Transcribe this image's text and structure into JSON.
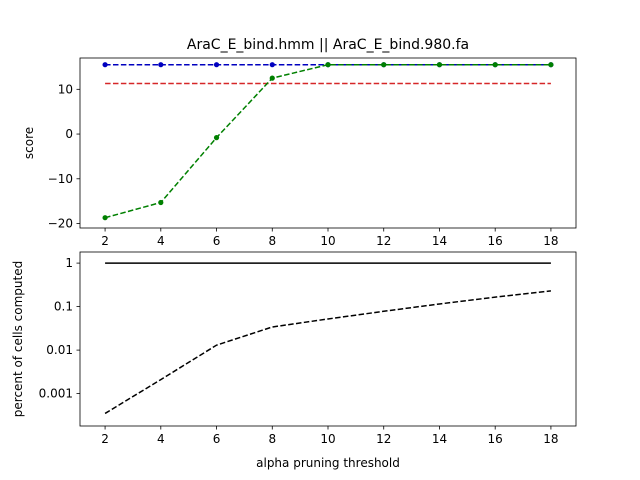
{
  "chart_data": [
    {
      "type": "line",
      "title": "AraC_E_bind.hmm || AraC_E_bind.980.fa",
      "xlabel": "",
      "ylabel": "score",
      "x": [
        2,
        4,
        6,
        8,
        10,
        12,
        14,
        16,
        18
      ],
      "xticks": [
        "2",
        "4",
        "6",
        "8",
        "10",
        "12",
        "14",
        "16",
        "18"
      ],
      "xlim": [
        1.1,
        18.9
      ],
      "ylim": [
        -21,
        17
      ],
      "yticks": [
        {
          "value": 10,
          "label": "10"
        },
        {
          "value": 0,
          "label": "0"
        },
        {
          "value": -10,
          "label": "−10"
        },
        {
          "value": -20,
          "label": "−20"
        }
      ],
      "grid": false,
      "series": [
        {
          "color": "#0000bf",
          "style": "dashed",
          "marker": "dot",
          "values": [
            15.5,
            15.5,
            15.5,
            15.5,
            15.5,
            15.5,
            15.5,
            15.5,
            15.5
          ]
        },
        {
          "color": "#d62728",
          "style": "dashed",
          "marker": "none",
          "values": [
            11.3,
            11.3,
            11.3,
            11.3,
            11.3,
            11.3,
            11.3,
            11.3,
            11.3
          ]
        },
        {
          "color": "#008000",
          "style": "dashed",
          "marker": "dot",
          "values": [
            -18.7,
            -15.3,
            -0.8,
            12.5,
            15.5,
            15.5,
            15.5,
            15.5,
            15.5
          ]
        }
      ]
    },
    {
      "type": "line",
      "title": "",
      "xlabel": "alpha pruning threshold",
      "ylabel": "percent of cells computed",
      "scale_y": "log",
      "x": [
        2,
        4,
        6,
        8,
        10,
        12,
        14,
        16,
        18
      ],
      "xticks": [
        "2",
        "4",
        "6",
        "8",
        "10",
        "12",
        "14",
        "16",
        "18"
      ],
      "xlim": [
        1.1,
        18.9
      ],
      "ylim": [
        0.00018,
        1.8
      ],
      "yticks": [
        {
          "value": 1,
          "label": "1"
        },
        {
          "value": 0.1,
          "label": "0.1"
        },
        {
          "value": 0.01,
          "label": "0.01"
        },
        {
          "value": 0.001,
          "label": "0.001"
        }
      ],
      "grid": false,
      "series": [
        {
          "color": "#000000",
          "style": "solid",
          "values": [
            1,
            1,
            1,
            1,
            1,
            1,
            1,
            1,
            1
          ]
        },
        {
          "color": "#000000",
          "style": "dashed",
          "values": [
            0.00035,
            0.0021,
            0.013,
            0.034,
            0.052,
            0.078,
            0.115,
            0.165,
            0.23
          ]
        }
      ]
    }
  ]
}
